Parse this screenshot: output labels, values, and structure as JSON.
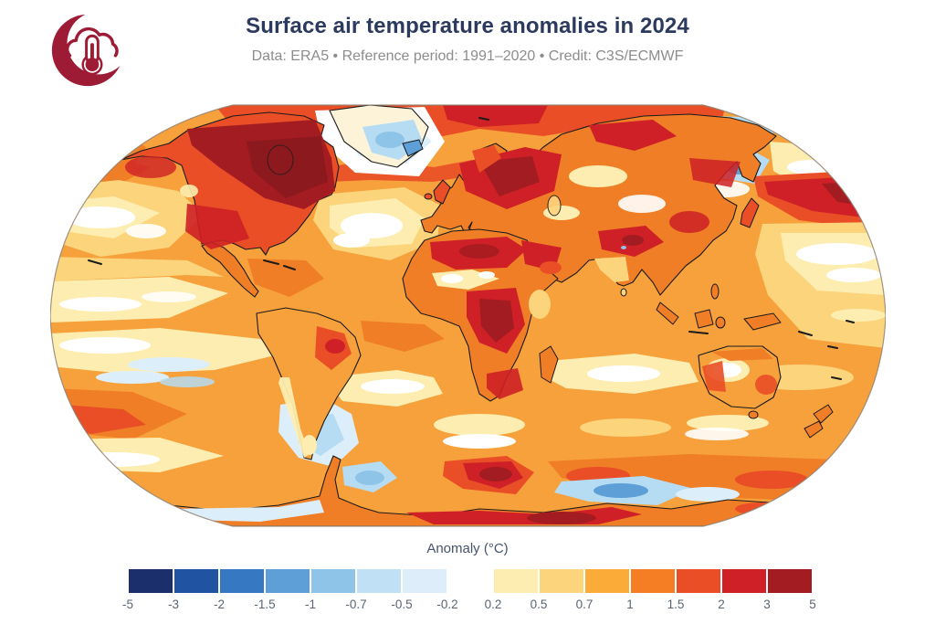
{
  "header": {
    "title": "Surface air temperature anomalies in 2024",
    "subtitle": "Data: ERA5 • Reference period: 1991–2020 • Credit: C3S/ECMWF",
    "title_color": "#2b3a5e",
    "subtitle_color": "#8d8d8d",
    "logo": {
      "name": "c3s-cloud-thermometer-logo",
      "color": "#9e1b36"
    }
  },
  "legend": {
    "label": "Anomaly (°C)",
    "label_color": "#46536b",
    "tick_color": "#5b6472",
    "tick_labels": [
      "-5",
      "-3",
      "-2",
      "-1.5",
      "-1",
      "-0.7",
      "-0.5",
      "-0.2",
      "0.2",
      "0.5",
      "0.7",
      "1",
      "1.5",
      "2",
      "3",
      "5"
    ],
    "segment_colors": [
      "#1A2F6B",
      "#2153A3",
      "#3678C1",
      "#5D9FD6",
      "#8FC4E9",
      "#BFE0F5",
      "#DDEEFA",
      "#FFFFFF",
      "#FDEDB0",
      "#FCD47C",
      "#FBAC38",
      "#F57E24",
      "#E94E27",
      "#CE2026",
      "#A31C21"
    ]
  },
  "chart_data": {
    "type": "heatmap",
    "title": "Surface air temperature anomalies in 2024",
    "subtitle": "Data: ERA5 • Reference period: 1991–2020 • Credit: C3S/ECMWF",
    "units": "°C",
    "projection": "Robinson world map",
    "colorbar_label": "Anomaly (°C)",
    "levels": [
      -5,
      -3,
      -2,
      -1.5,
      -1,
      -0.7,
      -0.5,
      -0.2,
      0.2,
      0.5,
      0.7,
      1,
      1.5,
      2,
      3,
      5
    ],
    "level_colors": [
      "#1A2F6B",
      "#2153A3",
      "#3678C1",
      "#5D9FD6",
      "#8FC4E9",
      "#BFE0F5",
      "#DDEEFA",
      "#FFFFFF",
      "#FDEDB0",
      "#FCD47C",
      "#FBAC38",
      "#F57E24",
      "#E94E27",
      "#CE2026",
      "#A31C21"
    ],
    "notable_regions": [
      {
        "region": "Arctic / northern Canada / Hudson Bay",
        "anomaly_c": "+3 to +5"
      },
      {
        "region": "Eastern Europe / western Russia",
        "anomaly_c": "+2 to +5"
      },
      {
        "region": "North Pacific east of Japan",
        "anomaly_c": "+2 to +5"
      },
      {
        "region": "Sahara, Congo basin and southern Africa",
        "anomaly_c": "+2 to +3"
      },
      {
        "region": "Interior Brazil and Andes margin",
        "anomaly_c": "+1.5 to +3"
      },
      {
        "region": "Southeast of Greenland / around Iceland",
        "anomaly_c": "-0.5 to -1.5"
      },
      {
        "region": "Bering Sea / Sea of Okhotsk",
        "anomaly_c": "-0.5 to -1"
      },
      {
        "region": "Southeast Pacific and Drake Passage patches",
        "anomaly_c": "-0.2 to -1"
      },
      {
        "region": "Antarctic coastal patches",
        "anomaly_c": "-0.5 to -1.5"
      },
      {
        "region": "Most other land and ocean areas",
        "anomaly_c": "+0.2 to +2"
      }
    ]
  }
}
